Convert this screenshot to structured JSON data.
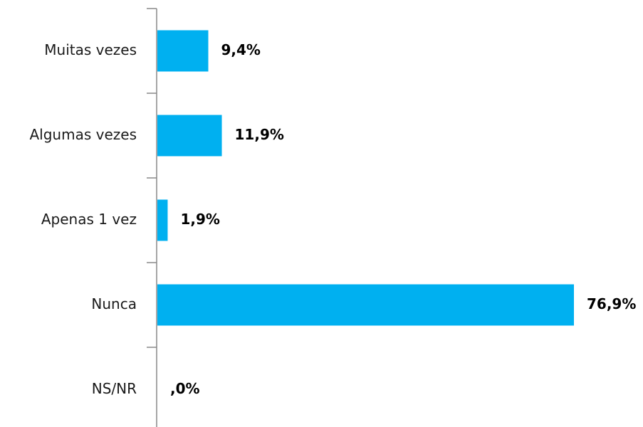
{
  "chart_data": {
    "type": "bar",
    "orientation": "horizontal",
    "categories": [
      "Muitas vezes",
      "Algumas vezes",
      "Apenas 1 vez",
      "Nunca",
      "NS/NR"
    ],
    "values": [
      9.4,
      11.9,
      1.9,
      76.9,
      0
    ],
    "value_labels": [
      "9,4%",
      "11,9%",
      "1,9%",
      "76,9%",
      ",0%"
    ],
    "color": "#00b0f0"
  }
}
